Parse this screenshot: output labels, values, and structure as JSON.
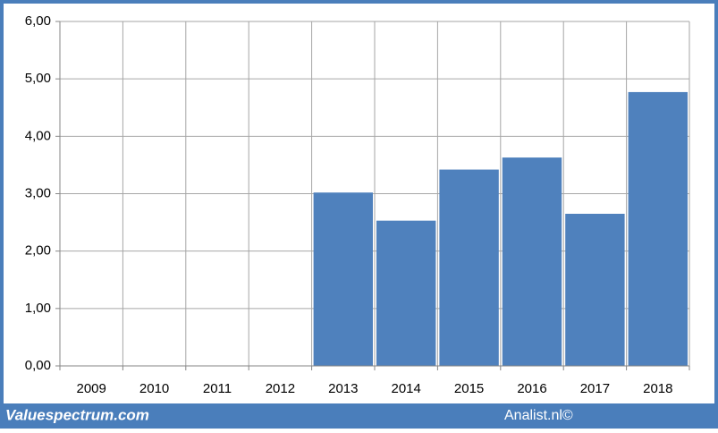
{
  "chart_data": {
    "type": "bar",
    "categories": [
      "2009",
      "2010",
      "2011",
      "2012",
      "2013",
      "2014",
      "2015",
      "2016",
      "2017",
      "2018"
    ],
    "values": [
      null,
      null,
      null,
      null,
      3.02,
      2.53,
      3.42,
      3.63,
      2.65,
      4.77
    ],
    "color": "#4f81bd",
    "ylim": [
      0,
      6
    ],
    "yticks": [
      {
        "value": 0,
        "label": "0,00"
      },
      {
        "value": 1,
        "label": "1,00"
      },
      {
        "value": 2,
        "label": "2,00"
      },
      {
        "value": 3,
        "label": "3,00"
      },
      {
        "value": 4,
        "label": "4,00"
      },
      {
        "value": 5,
        "label": "5,00"
      },
      {
        "value": 6,
        "label": "6,00"
      }
    ],
    "grid": true
  },
  "footer": {
    "left": "Valuespectrum.com",
    "right": "Analist.nl©"
  }
}
